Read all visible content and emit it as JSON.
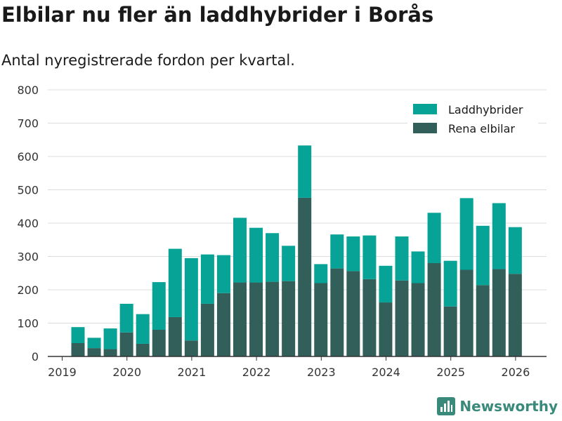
{
  "header": {
    "title": "Elbilar nu fler än laddhybrider i Borås",
    "subtitle": "Antal nyregistrerade fordon per kvartal."
  },
  "brand": {
    "name": "Newsworthy",
    "icon": "bar-chart-logo-icon",
    "color": "#3a8a7c"
  },
  "chart_data": {
    "type": "bar",
    "stacked": true,
    "title": "Elbilar nu fler än laddhybrider i Borås",
    "subtitle": "Antal nyregistrerade fordon per kvartal.",
    "xlabel": "",
    "ylabel": "",
    "ylim": [
      0,
      800
    ],
    "yticks": [
      0,
      100,
      200,
      300,
      400,
      500,
      600,
      700,
      800
    ],
    "xticks": [
      "2019",
      "2020",
      "2021",
      "2022",
      "2023",
      "2024",
      "2025",
      "2026"
    ],
    "grid": true,
    "legend_position": "top-right",
    "categories": [
      "2019 Q2",
      "2019 Q3",
      "2019 Q4",
      "2020 Q1",
      "2020 Q2",
      "2020 Q3",
      "2020 Q4",
      "2021 Q1",
      "2021 Q2",
      "2021 Q3",
      "2021 Q4",
      "2022 Q1",
      "2022 Q2",
      "2022 Q3",
      "2022 Q4",
      "2023 Q1",
      "2023 Q2",
      "2023 Q3",
      "2023 Q4",
      "2024 Q1",
      "2024 Q2",
      "2024 Q3",
      "2024 Q4",
      "2025 Q1",
      "2025 Q2",
      "2025 Q3",
      "2025 Q4",
      "2026 Q1"
    ],
    "series": [
      {
        "name": "Rena elbilar",
        "color": "#335f5a",
        "values": [
          40,
          25,
          22,
          72,
          38,
          80,
          118,
          48,
          158,
          190,
          222,
          222,
          224,
          226,
          476,
          220,
          264,
          256,
          232,
          162,
          228,
          220,
          280,
          150,
          260,
          214,
          262,
          248
        ]
      },
      {
        "name": "Laddhybrider",
        "color": "#06a396",
        "values": [
          48,
          31,
          62,
          86,
          89,
          143,
          205,
          247,
          148,
          114,
          194,
          164,
          146,
          106,
          157,
          57,
          102,
          104,
          131,
          110,
          132,
          95,
          151,
          137,
          215,
          178,
          198,
          140
        ]
      }
    ],
    "legend": [
      "Laddhybrider",
      "Rena elbilar"
    ]
  }
}
